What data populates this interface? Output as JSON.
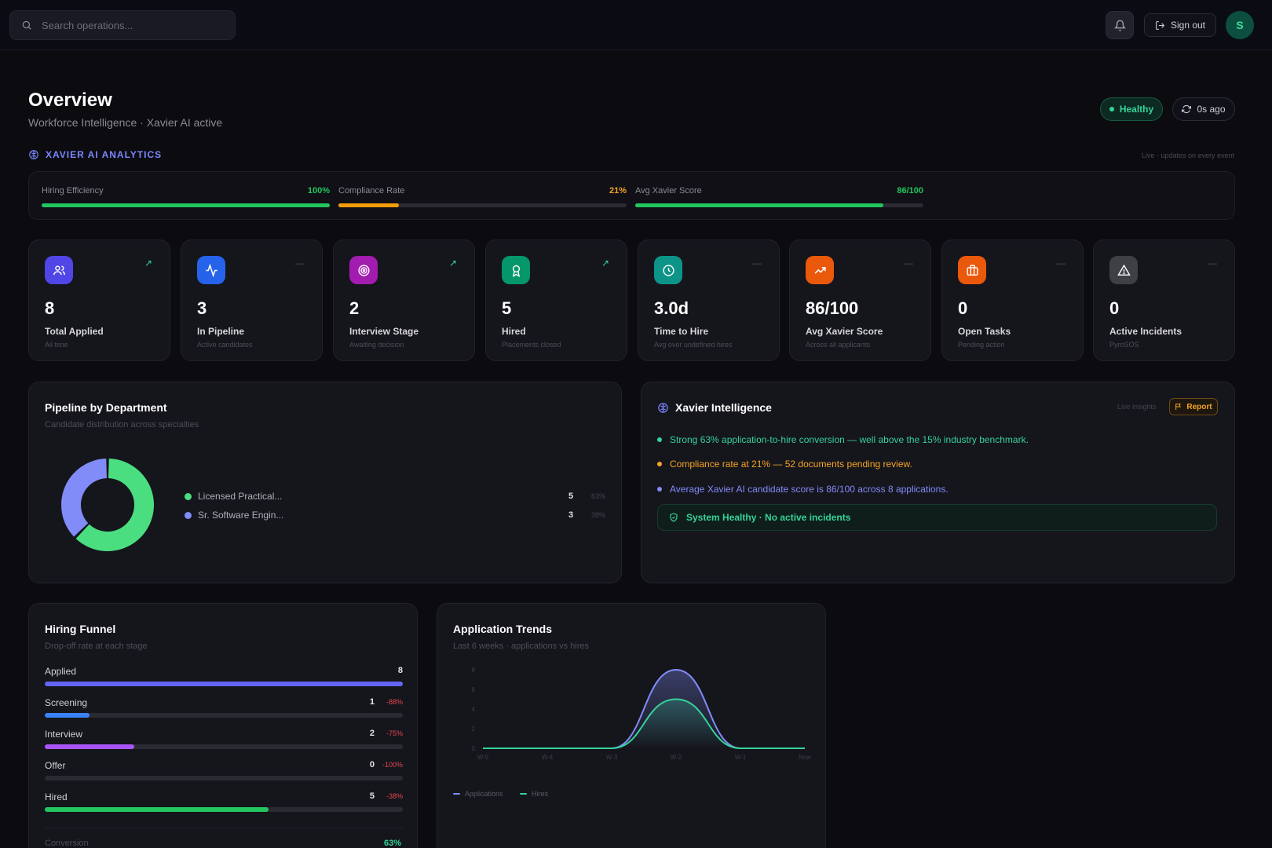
{
  "header": {
    "search_placeholder": "Search operations...",
    "sign_out_label": "Sign out",
    "avatar_initial": "S",
    "icons": [
      "search-icon",
      "bell-icon",
      "sign-out-icon"
    ]
  },
  "overview": {
    "title": "Overview",
    "subtitle": "Workforce Intelligence · Xavier AI active",
    "status_label": "Healthy",
    "refresh_label": "0s ago"
  },
  "analytics": {
    "section_label": "XAVIER AI ANALYTICS",
    "live_note": "Live · updates on every event",
    "metrics": [
      {
        "label": "Hiring Efficiency",
        "value": "100%",
        "fraction": 1.0,
        "color": "#22c55e"
      },
      {
        "label": "Compliance Rate",
        "value": "21%",
        "fraction": 0.21,
        "color": "#f59e0b"
      },
      {
        "label": "Avg Xavier Score",
        "value": "86/100",
        "fraction": 0.86,
        "color": "#22c55e"
      }
    ]
  },
  "stats": [
    {
      "value": "8",
      "label": "Total Applied",
      "sub": "All time",
      "icon": "users-icon",
      "color": "#4f46e5",
      "trend": "up"
    },
    {
      "value": "3",
      "label": "In Pipeline",
      "sub": "Active candidates",
      "icon": "activity-icon",
      "color": "#2563eb",
      "trend": "flat"
    },
    {
      "value": "2",
      "label": "Interview Stage",
      "sub": "Awaiting decision",
      "icon": "target-icon",
      "color": "#a21caf",
      "trend": "up"
    },
    {
      "value": "5",
      "label": "Hired",
      "sub": "Placements closed",
      "icon": "award-icon",
      "color": "#059669",
      "trend": "up"
    },
    {
      "value": "3.0d",
      "label": "Time to Hire",
      "sub": "Avg over undefined hires",
      "icon": "clock-icon",
      "color": "#0d9488",
      "trend": "flat"
    },
    {
      "value": "86/100",
      "label": "Avg Xavier Score",
      "sub": "Across all applicants",
      "icon": "trending-up-icon",
      "color": "#ea580c",
      "trend": "flat"
    },
    {
      "value": "0",
      "label": "Open Tasks",
      "sub": "Pending action",
      "icon": "briefcase-icon",
      "color": "#ea580c",
      "trend": "flat"
    },
    {
      "value": "0",
      "label": "Active Incidents",
      "sub": "PyroSOS",
      "icon": "alert-triangle-icon",
      "color": "#3f3f46",
      "trend": "flat"
    }
  ],
  "pipeline": {
    "title": "Pipeline by Department",
    "subtitle": "Candidate distribution across specialties",
    "items": [
      {
        "label": "Licensed Practical...",
        "count": "5",
        "pct": "63%",
        "value": 5,
        "color": "#4ade80"
      },
      {
        "label": "Sr. Software Engin...",
        "count": "3",
        "pct": "38%",
        "value": 3,
        "color": "#818cf8"
      }
    ]
  },
  "intelligence": {
    "title": "Xavier Intelligence",
    "live_label": "Live insights",
    "report_label": "Report",
    "insights": [
      {
        "text": "Strong 63% application-to-hire conversion — well above the 15% industry benchmark.",
        "color": "#34d399"
      },
      {
        "text": "Compliance rate at 21% — 52 documents pending review.",
        "color": "#f5a524"
      },
      {
        "text": "Average Xavier AI candidate score is 86/100 across 8 applications.",
        "color": "#818cf8"
      }
    ],
    "system_status": "System Healthy · No active incidents"
  },
  "funnel": {
    "title": "Hiring Funnel",
    "subtitle": "Drop-off rate at each stage",
    "stages": [
      {
        "label": "Applied",
        "count": "8",
        "drop": "",
        "fraction": 1.0,
        "color": "#6366f1"
      },
      {
        "label": "Screening",
        "count": "1",
        "drop": "-88%",
        "fraction": 0.125,
        "color": "#3b82f6"
      },
      {
        "label": "Interview",
        "count": "2",
        "drop": "-75%",
        "fraction": 0.25,
        "color": "#a855f7"
      },
      {
        "label": "Offer",
        "count": "0",
        "drop": "-100%",
        "fraction": 0,
        "color": "#f59e0b"
      },
      {
        "label": "Hired",
        "count": "5",
        "drop": "-38%",
        "fraction": 0.625,
        "color": "#22c55e"
      }
    ],
    "conversion_label": "Conversion",
    "conversion_value": "63%"
  },
  "chart_data": {
    "type": "area",
    "title": "Application Trends",
    "subtitle": "Last 6 weeks · applications vs hires",
    "categories": [
      "W-5",
      "W-4",
      "W-3",
      "W-2",
      "W-1",
      "Now"
    ],
    "y_ticks": [
      "0",
      "2",
      "4",
      "6",
      "8"
    ],
    "ylim": [
      0,
      8
    ],
    "series": [
      {
        "name": "Applications",
        "values": [
          0,
          0,
          0,
          8,
          0,
          0
        ],
        "color": "#818cf8"
      },
      {
        "name": "Hires",
        "values": [
          0,
          0,
          0,
          5,
          0,
          0
        ],
        "color": "#34d399"
      }
    ],
    "legend_position": "bottom-left",
    "grid": false
  }
}
